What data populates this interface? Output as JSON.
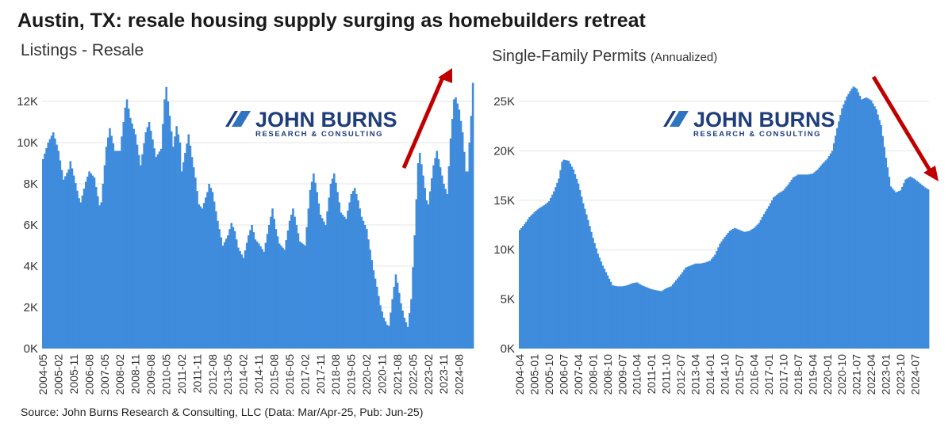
{
  "title": "Austin, TX: resale housing supply surging as homebuilders retreat",
  "source": "Source: John Burns Research & Consulting, LLC (Data: Mar/Apr-25, Pub: Jun-25)",
  "logo": {
    "main": "JOHN BURNS",
    "sub": "RESEARCH & CONSULTING"
  },
  "colors": {
    "bar": "#3f8bdc",
    "arrow": "#c00000",
    "grid": "#e6e6e6",
    "logo": "#1f3d7a"
  },
  "chart_data": [
    {
      "type": "bar",
      "title": "Listings - Resale",
      "xlabel": "",
      "ylabel": "",
      "ylim": [
        0,
        13000
      ],
      "yticks": [
        0,
        2000,
        4000,
        6000,
        8000,
        10000,
        12000
      ],
      "ytick_labels": [
        "0K",
        "2K",
        "4K",
        "6K",
        "8K",
        "10K",
        "12K"
      ],
      "x_tick_labels": [
        "2004-05",
        "2005-02",
        "2005-11",
        "2006-08",
        "2007-05",
        "2008-02",
        "2008-11",
        "2009-08",
        "2010-05",
        "2011-02",
        "2011-11",
        "2012-08",
        "2013-05",
        "2014-02",
        "2014-11",
        "2015-08",
        "2016-05",
        "2017-02",
        "2017-11",
        "2018-08",
        "2019-05",
        "2020-02",
        "2020-11",
        "2021-08",
        "2022-05",
        "2023-02",
        "2023-11",
        "2024-08"
      ],
      "start": "2004-05",
      "end": "2025-04",
      "anchors": [
        [
          "2004-05",
          9200
        ],
        [
          "2004-08",
          10000
        ],
        [
          "2004-11",
          10500
        ],
        [
          "2005-02",
          9600
        ],
        [
          "2005-05",
          8200
        ],
        [
          "2005-08",
          8700
        ],
        [
          "2005-09",
          9100
        ],
        [
          "2005-11",
          8400
        ],
        [
          "2006-02",
          7300
        ],
        [
          "2006-03",
          7100
        ],
        [
          "2006-06",
          8100
        ],
        [
          "2006-08",
          8600
        ],
        [
          "2006-11",
          8300
        ],
        [
          "2007-02",
          6950
        ],
        [
          "2007-03",
          7100
        ],
        [
          "2007-06",
          9800
        ],
        [
          "2007-08",
          10700
        ],
        [
          "2007-11",
          9600
        ],
        [
          "2008-02",
          9600
        ],
        [
          "2008-05",
          11700
        ],
        [
          "2008-06",
          12100
        ],
        [
          "2008-08",
          11200
        ],
        [
          "2008-11",
          10400
        ],
        [
          "2009-02",
          8900
        ],
        [
          "2009-05",
          10500
        ],
        [
          "2009-07",
          11000
        ],
        [
          "2009-11",
          9300
        ],
        [
          "2010-02",
          9700
        ],
        [
          "2010-04",
          12100
        ],
        [
          "2010-05",
          12700
        ],
        [
          "2010-07",
          11300
        ],
        [
          "2010-09",
          9800
        ],
        [
          "2010-11",
          10800
        ],
        [
          "2011-01",
          10000
        ],
        [
          "2011-02",
          8600
        ],
        [
          "2011-04",
          9500
        ],
        [
          "2011-06",
          10400
        ],
        [
          "2011-08",
          9300
        ],
        [
          "2011-10",
          8300
        ],
        [
          "2011-12",
          7000
        ],
        [
          "2012-02",
          6800
        ],
        [
          "2012-05",
          7600
        ],
        [
          "2012-06",
          8000
        ],
        [
          "2012-08",
          7600
        ],
        [
          "2012-11",
          6200
        ],
        [
          "2013-02",
          5000
        ],
        [
          "2013-05",
          5500
        ],
        [
          "2013-07",
          6100
        ],
        [
          "2013-09",
          5700
        ],
        [
          "2013-11",
          4900
        ],
        [
          "2014-02",
          4400
        ],
        [
          "2014-05",
          5500
        ],
        [
          "2014-07",
          6000
        ],
        [
          "2014-09",
          5300
        ],
        [
          "2014-11",
          5100
        ],
        [
          "2015-02",
          4700
        ],
        [
          "2015-05",
          6000
        ],
        [
          "2015-07",
          6800
        ],
        [
          "2015-09",
          5800
        ],
        [
          "2015-11",
          5100
        ],
        [
          "2016-02",
          4800
        ],
        [
          "2016-05",
          6200
        ],
        [
          "2016-07",
          6800
        ],
        [
          "2016-09",
          6000
        ],
        [
          "2016-11",
          5200
        ],
        [
          "2017-02",
          5000
        ],
        [
          "2017-05",
          7700
        ],
        [
          "2017-07",
          8500
        ],
        [
          "2017-09",
          7600
        ],
        [
          "2017-11",
          6500
        ],
        [
          "2018-02",
          6000
        ],
        [
          "2018-05",
          8000
        ],
        [
          "2018-07",
          8500
        ],
        [
          "2018-09",
          7600
        ],
        [
          "2018-11",
          6600
        ],
        [
          "2019-02",
          6300
        ],
        [
          "2019-05",
          7500
        ],
        [
          "2019-07",
          7800
        ],
        [
          "2019-09",
          7200
        ],
        [
          "2019-11",
          6400
        ],
        [
          "2020-02",
          5800
        ],
        [
          "2020-04",
          4800
        ],
        [
          "2020-06",
          3800
        ],
        [
          "2020-08",
          3000
        ],
        [
          "2020-10",
          2100
        ],
        [
          "2020-12",
          1500
        ],
        [
          "2021-02",
          1150
        ],
        [
          "2021-03",
          1100
        ],
        [
          "2021-05",
          2400
        ],
        [
          "2021-07",
          3600
        ],
        [
          "2021-08",
          3200
        ],
        [
          "2021-10",
          2200
        ],
        [
          "2021-12",
          1500
        ],
        [
          "2022-02",
          1050
        ],
        [
          "2022-04",
          2400
        ],
        [
          "2022-06",
          5500
        ],
        [
          "2022-08",
          9000
        ],
        [
          "2022-09",
          9500
        ],
        [
          "2022-11",
          8400
        ],
        [
          "2023-01",
          7200
        ],
        [
          "2023-02",
          7000
        ],
        [
          "2023-05",
          8900
        ],
        [
          "2023-07",
          9600
        ],
        [
          "2023-09",
          8800
        ],
        [
          "2023-11",
          8000
        ],
        [
          "2024-01",
          7500
        ],
        [
          "2024-03",
          10200
        ],
        [
          "2024-05",
          12100
        ],
        [
          "2024-06",
          12200
        ],
        [
          "2024-08",
          11600
        ],
        [
          "2024-10",
          10500
        ],
        [
          "2024-12",
          8600
        ],
        [
          "2025-01",
          8600
        ],
        [
          "2025-02",
          10000
        ],
        [
          "2025-03",
          11300
        ],
        [
          "2025-04",
          12900
        ]
      ]
    },
    {
      "type": "bar",
      "title": "Single-Family Permits",
      "title_note": "(Annualized)",
      "xlabel": "",
      "ylabel": "",
      "ylim": [
        0,
        28000
      ],
      "yticks": [
        0,
        5000,
        10000,
        15000,
        20000,
        25000
      ],
      "ytick_labels": [
        "0K",
        "5K",
        "10K",
        "15K",
        "20K",
        "25K"
      ],
      "x_tick_labels": [
        "2004-04",
        "2005-01",
        "2005-10",
        "2006-07",
        "2007-04",
        "2008-01",
        "2008-10",
        "2009-07",
        "2010-04",
        "2011-01",
        "2011-10",
        "2012-07",
        "2013-04",
        "2014-01",
        "2014-10",
        "2015-07",
        "2016-04",
        "2017-01",
        "2017-10",
        "2018-07",
        "2019-04",
        "2020-01",
        "2020-10",
        "2021-07",
        "2022-04",
        "2023-01",
        "2023-10",
        "2024-07"
      ],
      "start": "2004-04",
      "end": "2025-03",
      "anchors": [
        [
          "2004-04",
          12000
        ],
        [
          "2004-07",
          12600
        ],
        [
          "2004-10",
          13300
        ],
        [
          "2005-01",
          13800
        ],
        [
          "2005-04",
          14200
        ],
        [
          "2005-07",
          14500
        ],
        [
          "2005-10",
          14900
        ],
        [
          "2006-01",
          15900
        ],
        [
          "2006-04",
          17200
        ],
        [
          "2006-06",
          18900
        ],
        [
          "2006-07",
          19100
        ],
        [
          "2006-10",
          19000
        ],
        [
          "2007-01",
          18100
        ],
        [
          "2007-04",
          16700
        ],
        [
          "2007-07",
          14700
        ],
        [
          "2007-10",
          13000
        ],
        [
          "2008-01",
          11200
        ],
        [
          "2008-04",
          9600
        ],
        [
          "2008-07",
          8400
        ],
        [
          "2008-10",
          7400
        ],
        [
          "2009-01",
          6400
        ],
        [
          "2009-04",
          6300
        ],
        [
          "2009-07",
          6300
        ],
        [
          "2009-10",
          6400
        ],
        [
          "2010-01",
          6600
        ],
        [
          "2010-04",
          6700
        ],
        [
          "2010-07",
          6400
        ],
        [
          "2010-10",
          6200
        ],
        [
          "2011-01",
          6000
        ],
        [
          "2011-04",
          5900
        ],
        [
          "2011-07",
          5800
        ],
        [
          "2011-10",
          6100
        ],
        [
          "2012-01",
          6300
        ],
        [
          "2012-04",
          6900
        ],
        [
          "2012-07",
          7500
        ],
        [
          "2012-10",
          8200
        ],
        [
          "2013-01",
          8400
        ],
        [
          "2013-04",
          8600
        ],
        [
          "2013-07",
          8600
        ],
        [
          "2013-10",
          8700
        ],
        [
          "2014-01",
          8900
        ],
        [
          "2014-04",
          9500
        ],
        [
          "2014-07",
          10600
        ],
        [
          "2014-10",
          11300
        ],
        [
          "2015-01",
          11900
        ],
        [
          "2015-04",
          12200
        ],
        [
          "2015-07",
          12000
        ],
        [
          "2015-10",
          11800
        ],
        [
          "2016-01",
          11900
        ],
        [
          "2016-04",
          12200
        ],
        [
          "2016-07",
          12700
        ],
        [
          "2016-10",
          13600
        ],
        [
          "2017-01",
          14400
        ],
        [
          "2017-04",
          15300
        ],
        [
          "2017-07",
          15700
        ],
        [
          "2017-10",
          16000
        ],
        [
          "2018-01",
          16600
        ],
        [
          "2018-04",
          17300
        ],
        [
          "2018-07",
          17600
        ],
        [
          "2018-10",
          17600
        ],
        [
          "2019-01",
          17600
        ],
        [
          "2019-04",
          17700
        ],
        [
          "2019-07",
          18100
        ],
        [
          "2019-10",
          18700
        ],
        [
          "2020-01",
          19200
        ],
        [
          "2020-04",
          20000
        ],
        [
          "2020-07",
          22300
        ],
        [
          "2020-10",
          24300
        ],
        [
          "2021-01",
          25500
        ],
        [
          "2021-04",
          26300
        ],
        [
          "2021-05",
          26500
        ],
        [
          "2021-07",
          26300
        ],
        [
          "2021-10",
          25200
        ],
        [
          "2022-01",
          25400
        ],
        [
          "2022-04",
          25100
        ],
        [
          "2022-07",
          24200
        ],
        [
          "2022-10",
          22600
        ],
        [
          "2023-01",
          19300
        ],
        [
          "2023-04",
          16400
        ],
        [
          "2023-07",
          15800
        ],
        [
          "2023-10",
          16000
        ],
        [
          "2024-01",
          17100
        ],
        [
          "2024-04",
          17400
        ],
        [
          "2024-07",
          17100
        ],
        [
          "2024-10",
          16700
        ],
        [
          "2025-01",
          16300
        ],
        [
          "2025-03",
          16100
        ]
      ]
    }
  ]
}
